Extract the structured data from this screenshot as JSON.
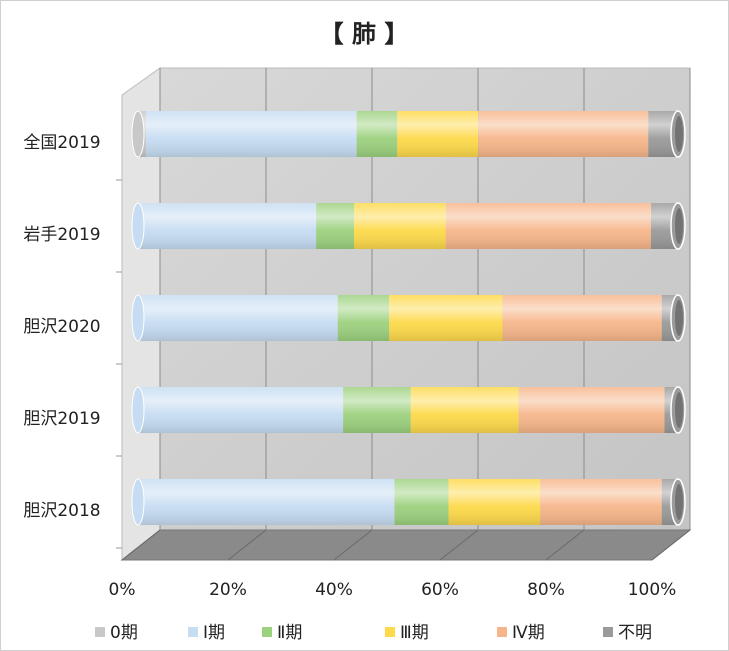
{
  "chart_data": {
    "type": "stacked-bar-3d",
    "orientation": "horizontal",
    "title": "【 肺 】",
    "categories": [
      "全国2019",
      "岩手2019",
      "胆沢2020",
      "胆沢2019",
      "胆沢2018"
    ],
    "series": [
      {
        "name": "0期",
        "color": "#c8c8c8",
        "values": [
          1.5,
          0,
          0,
          0,
          0
        ]
      },
      {
        "name": "Ⅰ期",
        "color": "#c6dcf2",
        "values": [
          39,
          33,
          37,
          38,
          47.5
        ]
      },
      {
        "name": "Ⅱ期",
        "color": "#9cd17e",
        "values": [
          7.5,
          7,
          9.5,
          12.5,
          10
        ]
      },
      {
        "name": "Ⅲ期",
        "color": "#fdd94a",
        "values": [
          15,
          17,
          21,
          20,
          17
        ]
      },
      {
        "name": "Ⅳ期",
        "color": "#f6b68a",
        "values": [
          31.5,
          38,
          29.5,
          27,
          22.5
        ]
      },
      {
        "name": "不明",
        "color": "#9a9a9a",
        "values": [
          5.5,
          5,
          3,
          2.5,
          3
        ]
      }
    ],
    "xlim": [
      0,
      100
    ],
    "xticks": [
      {
        "value": 0,
        "label": "0%"
      },
      {
        "value": 20,
        "label": "20%"
      },
      {
        "value": 40,
        "label": "40%"
      },
      {
        "value": 60,
        "label": "60%"
      },
      {
        "value": 80,
        "label": "80%"
      },
      {
        "value": 100,
        "label": "100%"
      }
    ],
    "grid": true,
    "legend": "bottom"
  }
}
